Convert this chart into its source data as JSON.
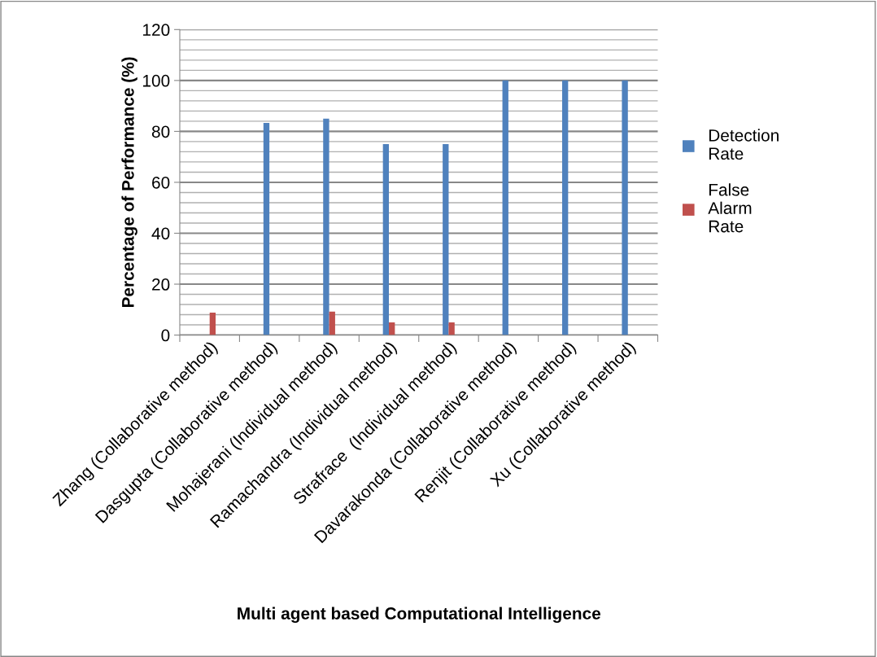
{
  "chart_data": {
    "type": "bar",
    "xlabel": "Multi agent based Computational Intelligence",
    "ylabel": "Percentage of Performance (%)",
    "categories": [
      "Zhang (Collaborative method)",
      "Dasgupta (Collaborative method)",
      "Mohajerani (Individual method)",
      "Ramachandra (Individual method)",
      "Strafrace  (Individual method)",
      "Davarakonda (Collaborative method)",
      "Renjit (Collaborative method)",
      "Xu (Collaborative method)"
    ],
    "series": [
      {
        "name": "Detection Rate",
        "color": "#4f81bd",
        "values": [
          0,
          83.3,
          85,
          75,
          75,
          100,
          100,
          100
        ]
      },
      {
        "name": "False Alarm Rate",
        "color": "#c0504d",
        "values": [
          8.8,
          0,
          9.2,
          5,
          5,
          0,
          0,
          0
        ]
      }
    ],
    "ylim": [
      0,
      120
    ],
    "yticks": [
      0,
      {
        "value": 4,
        "label": null
      },
      {
        "value": 8,
        "label": null
      },
      {
        "value": 12,
        "label": null
      },
      {
        "value": 16,
        "label": null
      },
      20,
      {
        "value": 24,
        "label": null
      },
      {
        "value": 28,
        "label": null
      },
      {
        "value": 32,
        "label": null
      },
      {
        "value": 36,
        "label": null
      },
      40,
      {
        "value": 44,
        "label": null
      },
      {
        "value": 48,
        "label": null
      },
      {
        "value": 52,
        "label": null
      },
      {
        "value": 56,
        "label": null
      },
      60,
      {
        "value": 64,
        "label": null
      },
      {
        "value": 68,
        "label": null
      },
      {
        "value": 72,
        "label": null
      },
      {
        "value": 76,
        "label": null
      },
      80,
      {
        "value": 84,
        "label": null
      },
      {
        "value": 88,
        "label": null
      },
      {
        "value": 92,
        "label": null
      },
      {
        "value": 96,
        "label": null
      },
      100,
      {
        "value": 104,
        "label": null
      },
      {
        "value": 108,
        "label": null
      },
      {
        "value": 112,
        "label": null
      },
      {
        "value": 116,
        "label": null
      },
      120
    ],
    "grid": "y",
    "legend": "right"
  }
}
